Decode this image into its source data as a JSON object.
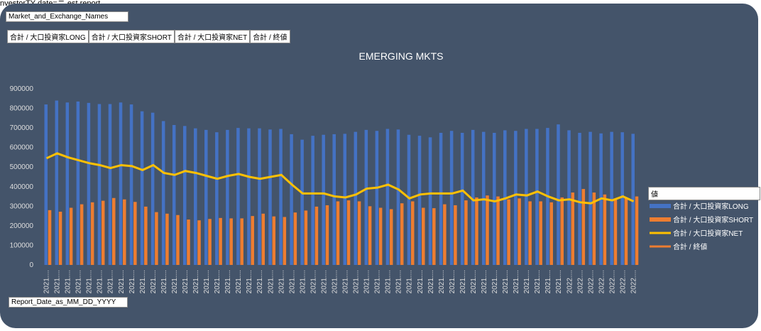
{
  "header": {
    "caption": "nvestorTY date=ニ est report"
  },
  "filter_button": "Market_and_Exchange_Names",
  "value_buttons": [
    "合計 / 大口投資家LONG",
    "合計 / 大口投資家SHORT",
    "合計 / 大口投資家NET",
    "合計 / 終値"
  ],
  "axis_button": "Report_Date_as_MM_DD_YYYY",
  "legend_header": "値",
  "chart_data": {
    "type": "bar",
    "title": "EMERGING MKTS",
    "categories": [
      "2021....",
      "2021....",
      "2021....",
      "2021....",
      "2021....",
      "2021....",
      "2021....",
      "2021....",
      "2021....",
      "2021....",
      "2021....",
      "2021....",
      "2021....",
      "2021....",
      "2021....",
      "2021....",
      "2021....",
      "2021....",
      "2021....",
      "2021....",
      "2021....",
      "2021....",
      "2021....",
      "2021....",
      "2021....",
      "2021....",
      "2021....",
      "2021....",
      "2021....",
      "2021....",
      "2021....",
      "2021....",
      "2021....",
      "2021....",
      "2021....",
      "2021....",
      "2021....",
      "2021....",
      "2021....",
      "2021....",
      "2021....",
      "2021....",
      "2021....",
      "2021....",
      "2021....",
      "2021....",
      "2021....",
      "2021....",
      "2021....",
      "2022....",
      "2022....",
      "2022....",
      "2022....",
      "2022....",
      "2022....",
      "2022...."
    ],
    "ylim": [
      0,
      900000
    ],
    "yticks": [
      0,
      100000,
      200000,
      300000,
      400000,
      500000,
      600000,
      700000,
      800000,
      900000
    ],
    "series": [
      {
        "name": "合計 / 大口投資家LONG",
        "color": "#4472c4",
        "mark": "bar",
        "values": [
          820000,
          840000,
          830000,
          835000,
          828000,
          822000,
          822000,
          830000,
          820000,
          785000,
          778000,
          735000,
          715000,
          710000,
          698000,
          690000,
          678000,
          690000,
          700000,
          698000,
          698000,
          692000,
          695000,
          668000,
          640000,
          660000,
          665000,
          668000,
          670000,
          680000,
          690000,
          685000,
          695000,
          692000,
          665000,
          660000,
          652000,
          675000,
          685000,
          675000,
          690000,
          680000,
          675000,
          688000,
          685000,
          695000,
          695000,
          700000,
          718000,
          688000,
          675000,
          680000,
          672000,
          680000,
          678000,
          670000
        ]
      },
      {
        "name": "合計 / 大口投資家SHORT",
        "color": "#ed7d31",
        "mark": "bar",
        "values": [
          280000,
          272000,
          292000,
          310000,
          320000,
          328000,
          342000,
          335000,
          322000,
          298000,
          270000,
          262000,
          255000,
          232000,
          228000,
          235000,
          240000,
          238000,
          238000,
          250000,
          262000,
          248000,
          245000,
          268000,
          278000,
          298000,
          305000,
          325000,
          330000,
          325000,
          300000,
          292000,
          285000,
          315000,
          325000,
          292000,
          290000,
          310000,
          305000,
          330000,
          345000,
          355000,
          350000,
          335000,
          340000,
          325000,
          325000,
          320000,
          345000,
          370000,
          388000,
          370000,
          360000,
          340000,
          345000,
          350000
        ]
      },
      {
        "name": "合計 / 大口投資家NET",
        "color": "#ffc000",
        "mark": "line",
        "values": [
          545000,
          570000,
          550000,
          535000,
          520000,
          510000,
          495000,
          510000,
          505000,
          485000,
          510000,
          470000,
          460000,
          480000,
          470000,
          455000,
          440000,
          455000,
          465000,
          450000,
          440000,
          450000,
          460000,
          410000,
          365000,
          365000,
          365000,
          350000,
          345000,
          360000,
          390000,
          395000,
          410000,
          385000,
          340000,
          360000,
          365000,
          365000,
          365000,
          380000,
          330000,
          335000,
          325000,
          340000,
          360000,
          355000,
          375000,
          350000,
          330000,
          335000,
          320000,
          315000,
          340000,
          330000,
          350000,
          325000
        ]
      },
      {
        "name": "合計 / 終値",
        "color": "#ed7d31",
        "mark": "line",
        "values": [
          null,
          null,
          null,
          null,
          null,
          null,
          null,
          null,
          null,
          null,
          null,
          null,
          null,
          null,
          null,
          null,
          null,
          null,
          null,
          null,
          null,
          null,
          null,
          null,
          null,
          null,
          null,
          null,
          null,
          null,
          null,
          null,
          null,
          null,
          null,
          null,
          null,
          null,
          null,
          null,
          null,
          null,
          null,
          null,
          null,
          null,
          null,
          null,
          null,
          null,
          null,
          null,
          null,
          null,
          null,
          null
        ]
      }
    ]
  }
}
